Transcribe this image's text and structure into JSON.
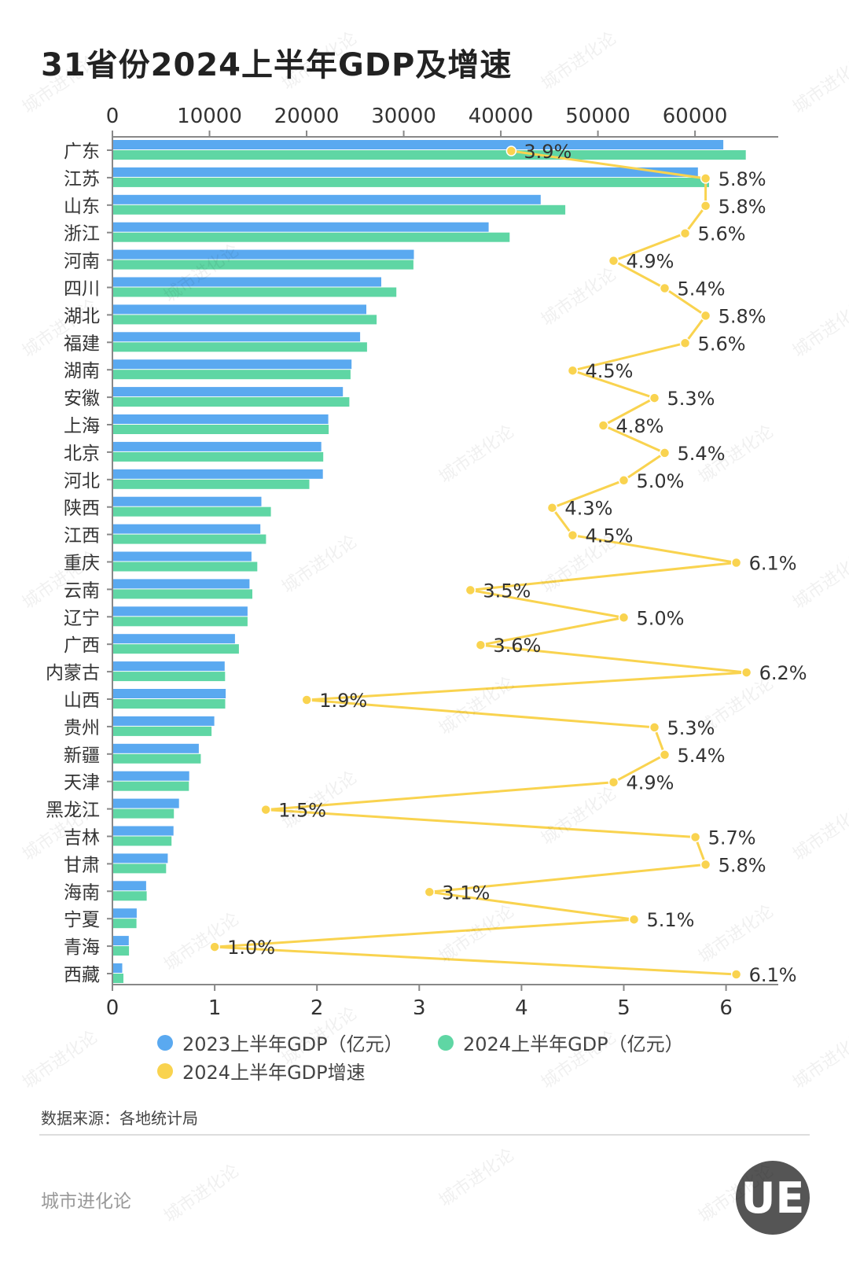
{
  "title": "31省份2024上半年GDP及增速",
  "source": "数据来源：各地统计局",
  "brand": "城市进化论",
  "logo_text": "UE",
  "watermark": "城市进化论",
  "colors": {
    "gdp2023": "#5aa9f0",
    "gdp2024": "#5fd6a4",
    "growth": "#f9d34f",
    "axis": "#888888"
  },
  "legend": {
    "gdp2023": "2023上半年GDP（亿元）",
    "gdp2024": "2024上半年GDP（亿元）",
    "growth": "2024上半年GDP增速"
  },
  "chart_data": {
    "type": "bar",
    "orientation": "horizontal",
    "title": "31省份2024上半年GDP及增速",
    "categories": [
      "广东",
      "江苏",
      "山东",
      "浙江",
      "河南",
      "四川",
      "湖北",
      "福建",
      "湖南",
      "安徽",
      "上海",
      "北京",
      "河北",
      "陕西",
      "江西",
      "重庆",
      "云南",
      "辽宁",
      "广西",
      "内蒙古",
      "山西",
      "贵州",
      "新疆",
      "天津",
      "黑龙江",
      "吉林",
      "甘肃",
      "海南",
      "宁夏",
      "青海",
      "西藏"
    ],
    "top_axis": {
      "min": 0,
      "max": 68000,
      "ticks": [
        "0",
        "10000",
        "20000",
        "30000",
        "40000",
        "50000",
        "60000"
      ],
      "tick_values": [
        0,
        10000,
        20000,
        30000,
        40000,
        50000,
        60000
      ]
    },
    "bottom_axis": {
      "min": 0,
      "max": 6.5,
      "ticks": [
        "0",
        "1",
        "2",
        "3",
        "4",
        "5",
        "6"
      ],
      "tick_values": [
        0,
        1,
        2,
        3,
        4,
        5,
        6
      ]
    },
    "series": [
      {
        "name": "2023上半年GDP（亿元）",
        "type": "bar",
        "axis": "top",
        "values": [
          62910,
          60300,
          44110,
          38750,
          31050,
          27690,
          26150,
          25510,
          24630,
          23740,
          22230,
          21510,
          21670,
          15340,
          15240,
          14320,
          14120,
          13920,
          12620,
          11560,
          11670,
          10490,
          8900,
          7910,
          6860,
          6290,
          5700,
          3470,
          2500,
          1680,
          1010
        ]
      },
      {
        "name": "2024上半年GDP（亿元）",
        "type": "bar",
        "axis": "top",
        "values": [
          65230,
          61450,
          46640,
          40910,
          31000,
          29240,
          27210,
          26220,
          24520,
          24400,
          22270,
          21710,
          20280,
          16320,
          15820,
          14920,
          14410,
          13920,
          13030,
          11600,
          11620,
          10210,
          9100,
          7880,
          6330,
          6090,
          5530,
          3530,
          2480,
          1710,
          1130
        ]
      },
      {
        "name": "2024上半年GDP增速",
        "type": "line",
        "axis": "bottom",
        "values": [
          3.9,
          5.8,
          5.8,
          5.6,
          4.9,
          5.4,
          5.8,
          5.6,
          4.5,
          5.3,
          4.8,
          5.4,
          5.0,
          4.3,
          4.5,
          6.1,
          3.5,
          5.0,
          3.6,
          6.2,
          1.9,
          5.3,
          5.4,
          4.9,
          1.5,
          5.7,
          5.8,
          3.1,
          5.1,
          1.0,
          6.1
        ],
        "labels": [
          "3.9%",
          "5.8%",
          "5.8%",
          "5.6%",
          "4.9%",
          "5.4%",
          "5.8%",
          "5.6%",
          "4.5%",
          "5.3%",
          "4.8%",
          "5.4%",
          "5.0%",
          "4.3%",
          "4.5%",
          "6.1%",
          "3.5%",
          "5.0%",
          "3.6%",
          "6.2%",
          "1.9%",
          "5.3%",
          "5.4%",
          "4.9%",
          "1.5%",
          "5.7%",
          "5.8%",
          "3.1%",
          "5.1%",
          "1.0%",
          "6.1%"
        ]
      }
    ],
    "legend_position": "bottom-left"
  }
}
